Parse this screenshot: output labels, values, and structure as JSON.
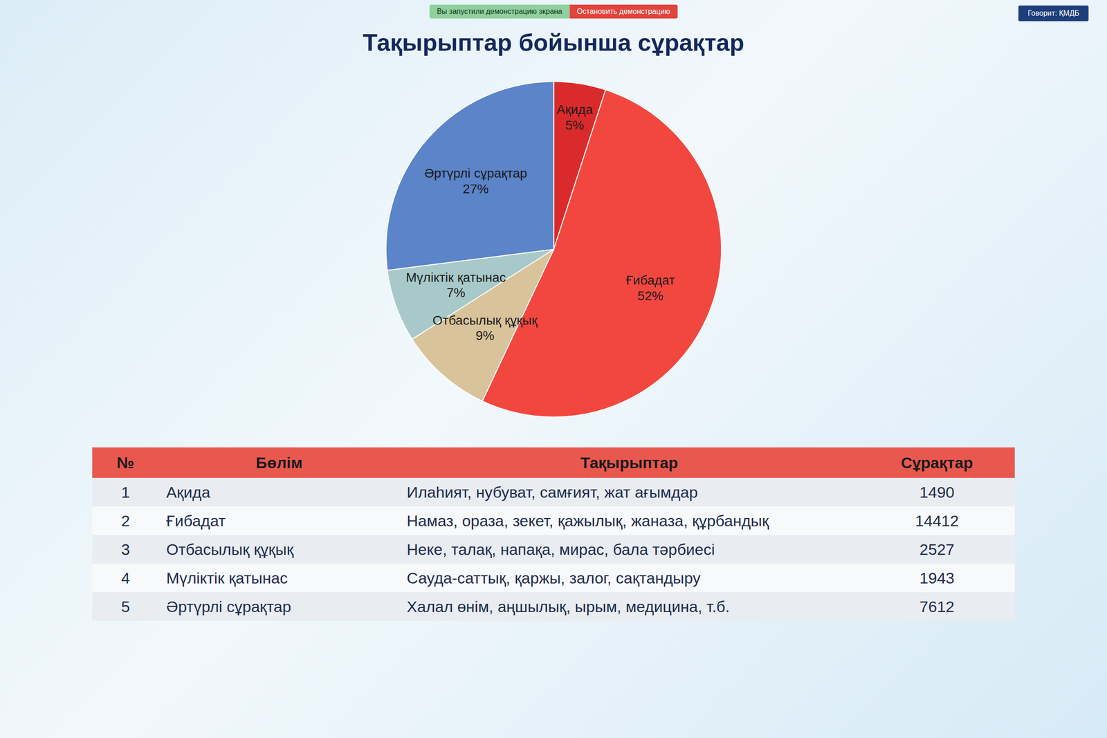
{
  "chart_data": {
    "type": "pie",
    "title": "Тақырыптар бойынша сұрақтар",
    "categories": [
      "Ақида",
      "Ғибадат",
      "Отбасылық құқық",
      "Мүліктік қатынас",
      "Әртүрлі сұрақтар"
    ],
    "values": [
      5,
      52,
      9,
      7,
      27
    ],
    "value_labels": [
      "5%",
      "52%",
      "9%",
      "7%",
      "27%"
    ],
    "colors": [
      "#d92b2b",
      "#f2473f",
      "#d8c39b",
      "#a8c9c9",
      "#5b84c9"
    ],
    "data_labels": true
  },
  "table": {
    "columns": [
      "№",
      "Бөлім",
      "Тақырыптар",
      "Сұрақтар"
    ],
    "rows": [
      [
        1,
        "Ақида",
        "Илаһият, нубуват, самғият, жат ағымдар",
        1490
      ],
      [
        2,
        "Ғибадат",
        "Намаз, ораза, зекет, қажылық, жаназа, құрбандық",
        14412
      ],
      [
        3,
        "Отбасылық құқық",
        "Неке, талақ, напақа, мирас, бала тәрбиесі",
        2527
      ],
      [
        4,
        "Мүліктік қатынас",
        "Сауда-саттық, қаржы, залог, сақтандыру",
        1943
      ],
      [
        5,
        "Әртүрлі сұрақтар",
        "Халал өнім, аңшылық, ырым, медицина, т.б.",
        7612
      ]
    ]
  },
  "screen_share": {
    "notice": "Вы запустили демонстрацию экрана",
    "stop": "Остановить демонстрацию",
    "speaker": "Говорит: ҚМДБ"
  }
}
